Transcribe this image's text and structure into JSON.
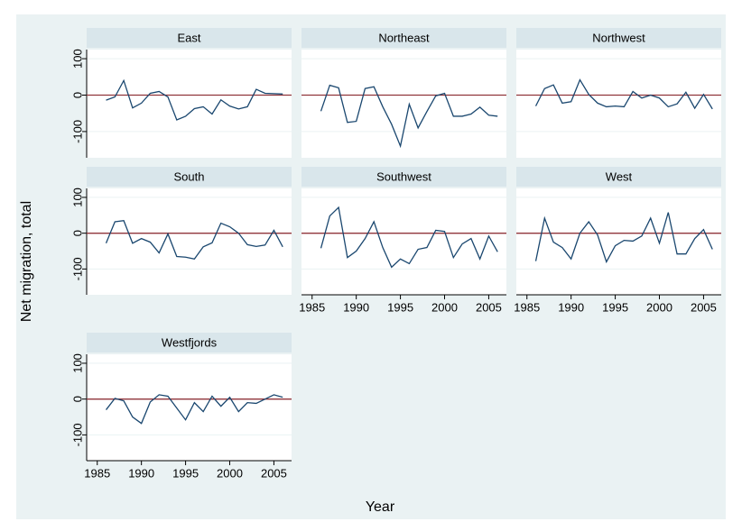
{
  "ylabel": "Net migration, total",
  "xlabel": "Year",
  "chart_data": [
    {
      "type": "line",
      "title": "East",
      "x": [
        1986,
        1987,
        1988,
        1989,
        1990,
        1991,
        1992,
        1993,
        1994,
        1995,
        1996,
        1997,
        1998,
        1999,
        2000,
        2001,
        2002,
        2003,
        2004,
        2005,
        2006
      ],
      "values": [
        -14,
        -5,
        40,
        -35,
        -22,
        5,
        10,
        -5,
        -68,
        -58,
        -37,
        -32,
        -52,
        -13,
        -30,
        -38,
        -32,
        16,
        5,
        4,
        3
      ],
      "color": "#1a476f",
      "refline": 0,
      "refline_color": "#90353b",
      "xlim": [
        1983.8,
        2007
      ],
      "ylim": [
        -172,
        125
      ],
      "yticks": [
        -100,
        0,
        100
      ],
      "grid": true
    },
    {
      "type": "line",
      "title": "Northeast",
      "x": [
        1986,
        1987,
        1988,
        1989,
        1990,
        1991,
        1992,
        1993,
        1994,
        1995,
        1996,
        1997,
        1998,
        1999,
        2000,
        2001,
        2002,
        2003,
        2004,
        2005,
        2006
      ],
      "values": [
        -44,
        27,
        20,
        -75,
        -72,
        18,
        23,
        -32,
        -80,
        -140,
        -25,
        -90,
        -45,
        -2,
        5,
        -58,
        -58,
        -52,
        -33,
        -55,
        -58
      ],
      "color": "#1a476f",
      "refline": 0,
      "refline_color": "#90353b",
      "xlim": [
        1983.8,
        2007
      ],
      "ylim": [
        -172,
        125
      ],
      "grid": true
    },
    {
      "type": "line",
      "title": "Northwest",
      "x": [
        1986,
        1987,
        1988,
        1989,
        1990,
        1991,
        1992,
        1993,
        1994,
        1995,
        1996,
        1997,
        1998,
        1999,
        2000,
        2001,
        2002,
        2003,
        2004,
        2005,
        2006
      ],
      "values": [
        -30,
        18,
        28,
        -22,
        -18,
        42,
        2,
        -22,
        -32,
        -30,
        -32,
        10,
        -8,
        0,
        -8,
        -32,
        -24,
        8,
        -36,
        2,
        -38
      ],
      "color": "#1a476f",
      "refline": 0,
      "refline_color": "#90353b",
      "xlim": [
        1983.8,
        2007
      ],
      "ylim": [
        -172,
        125
      ],
      "grid": true
    },
    {
      "type": "line",
      "title": "South",
      "x": [
        1986,
        1987,
        1988,
        1989,
        1990,
        1991,
        1992,
        1993,
        1994,
        1995,
        1996,
        1997,
        1998,
        1999,
        2000,
        2001,
        2002,
        2003,
        2004,
        2005,
        2006
      ],
      "values": [
        -28,
        32,
        35,
        -28,
        -15,
        -25,
        -55,
        -2,
        -65,
        -67,
        -72,
        -38,
        -27,
        28,
        18,
        0,
        -32,
        -37,
        -33,
        8,
        -38
      ],
      "color": "#1a476f",
      "refline": 0,
      "refline_color": "#90353b",
      "xlim": [
        1983.8,
        2007
      ],
      "ylim": [
        -172,
        125
      ],
      "yticks": [
        -100,
        0,
        100
      ],
      "grid": true
    },
    {
      "type": "line",
      "title": "Southwest",
      "x": [
        1986,
        1987,
        1988,
        1989,
        1990,
        1991,
        1992,
        1993,
        1994,
        1995,
        1996,
        1997,
        1998,
        1999,
        2000,
        2001,
        2002,
        2003,
        2004,
        2005,
        2006
      ],
      "values": [
        -42,
        48,
        72,
        -68,
        -50,
        -15,
        32,
        -40,
        -95,
        -72,
        -85,
        -45,
        -40,
        8,
        5,
        -68,
        -30,
        -15,
        -72,
        -8,
        -52
      ],
      "color": "#1a476f",
      "refline": 0,
      "refline_color": "#90353b",
      "xlim": [
        1983.8,
        2007
      ],
      "ylim": [
        -172,
        125
      ],
      "xticks": [
        1985,
        1990,
        1995,
        2000,
        2005
      ],
      "grid": true
    },
    {
      "type": "line",
      "title": "West",
      "x": [
        1986,
        1987,
        1988,
        1989,
        1990,
        1991,
        1992,
        1993,
        1994,
        1995,
        1996,
        1997,
        1998,
        1999,
        2000,
        2001,
        2002,
        2003,
        2004,
        2005,
        2006
      ],
      "values": [
        -78,
        42,
        -25,
        -40,
        -72,
        0,
        32,
        -5,
        -80,
        -35,
        -20,
        -22,
        -8,
        42,
        -28,
        58,
        -58,
        -58,
        -15,
        10,
        -45
      ],
      "color": "#1a476f",
      "refline": 0,
      "refline_color": "#90353b",
      "xlim": [
        1983.8,
        2007
      ],
      "ylim": [
        -172,
        125
      ],
      "xticks": [
        1985,
        1990,
        1995,
        2000,
        2005
      ],
      "grid": true
    },
    {
      "type": "line",
      "title": "Westfjords",
      "x": [
        1986,
        1987,
        1988,
        1989,
        1990,
        1991,
        1992,
        1993,
        1994,
        1995,
        1996,
        1997,
        1998,
        1999,
        2000,
        2001,
        2002,
        2003,
        2004,
        2005,
        2006
      ],
      "values": [
        -30,
        2,
        -5,
        -50,
        -68,
        -8,
        12,
        8,
        -25,
        -58,
        -10,
        -35,
        8,
        -20,
        5,
        -35,
        -10,
        -12,
        0,
        12,
        5
      ],
      "color": "#1a476f",
      "refline": 0,
      "refline_color": "#90353b",
      "xlim": [
        1983.8,
        2007
      ],
      "ylim": [
        -172,
        125
      ],
      "yticks": [
        -100,
        0,
        100
      ],
      "xticks": [
        1985,
        1990,
        1995,
        2000,
        2005
      ],
      "grid": true
    }
  ]
}
